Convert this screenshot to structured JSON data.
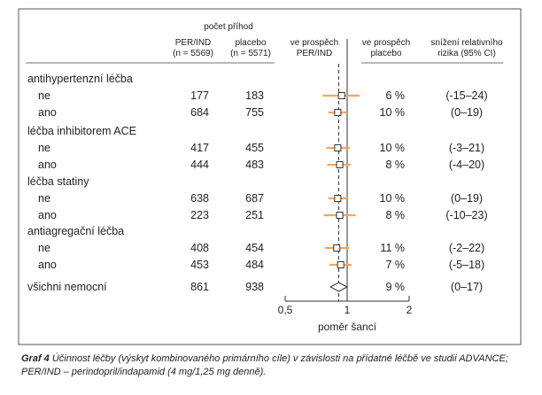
{
  "header": {
    "events_title": "počet příhod",
    "col_perind": "PER/IND",
    "col_perind_n": "(n = 5569)",
    "col_placebo": "placebo",
    "col_placebo_n": "(n = 5571)",
    "favours_perind_1": "ve prospěch",
    "favours_perind_2": "PER/IND",
    "favours_placebo_1": "ve prospěch",
    "favours_placebo_2": "placebo",
    "rrr_1": "snížení relativního",
    "rrr_2": "rizika (95% CI)"
  },
  "groups": [
    {
      "label": "antihypertenzní léčba"
    },
    {
      "label": "léčba inhibitorem ACE"
    },
    {
      "label": "léčba statiny"
    },
    {
      "label": "antiagregační léčba"
    }
  ],
  "rows": [
    {
      "label": "ne",
      "perind": "177",
      "placebo": "183",
      "rrr": "6 %",
      "ci": "(-15–24)"
    },
    {
      "label": "ano",
      "perind": "684",
      "placebo": "755",
      "rrr": "10 %",
      "ci": "(0–19)"
    },
    {
      "label": "ne",
      "perind": "417",
      "placebo": "455",
      "rrr": "10 %",
      "ci": "(-3–21)"
    },
    {
      "label": "ano",
      "perind": "444",
      "placebo": "483",
      "rrr": "8 %",
      "ci": "(-4–20)"
    },
    {
      "label": "ne",
      "perind": "638",
      "placebo": "687",
      "rrr": "10 %",
      "ci": "(0–19)"
    },
    {
      "label": "ano",
      "perind": "223",
      "placebo": "251",
      "rrr": "8 %",
      "ci": "(-10–23)"
    },
    {
      "label": "ne",
      "perind": "408",
      "placebo": "454",
      "rrr": "11 %",
      "ci": "(-2–22)"
    },
    {
      "label": "ano",
      "perind": "453",
      "placebo": "484",
      "rrr": "7 %",
      "ci": "(-5–18)"
    }
  ],
  "overall": {
    "label": "všichni nemocní",
    "perind": "861",
    "placebo": "938",
    "rrr": "9 %",
    "ci": "(0–17)"
  },
  "caption": {
    "prefix": "Graf 4",
    "text": "Účinnost léčby (výskyt kombinovaného primárního cíle) v závislosti na přídatné léčbě ve studii ADVANCE; PER/IND – perindopril/indapamid (4 mg/1,25 mg denně)."
  },
  "colors": {
    "ci_line": "#f2a75b",
    "box_border": "#333333",
    "frame": "#555555"
  },
  "chart_data": {
    "type": "forest",
    "xlabel": "poměr šancí",
    "xscale": "log",
    "xlim": [
      0.5,
      2
    ],
    "xticks": [
      0.5,
      1,
      2
    ],
    "xtick_labels": [
      "0,5",
      "1",
      "2"
    ],
    "reference_line": 1,
    "overall_estimate_line": 0.91,
    "rows": [
      {
        "group": "antihypertenzní léčba",
        "subgroup": "ne",
        "or": 0.94,
        "lo": 0.76,
        "hi": 1.15
      },
      {
        "group": "antihypertenzní léčba",
        "subgroup": "ano",
        "or": 0.9,
        "lo": 0.81,
        "hi": 1.0
      },
      {
        "group": "léčba inhibitorem ACE",
        "subgroup": "ne",
        "or": 0.9,
        "lo": 0.79,
        "hi": 1.03
      },
      {
        "group": "léčba inhibitorem ACE",
        "subgroup": "ano",
        "or": 0.92,
        "lo": 0.8,
        "hi": 1.04
      },
      {
        "group": "léčba statiny",
        "subgroup": "ne",
        "or": 0.9,
        "lo": 0.81,
        "hi": 1.0
      },
      {
        "group": "léčba statiny",
        "subgroup": "ano",
        "or": 0.92,
        "lo": 0.77,
        "hi": 1.1
      },
      {
        "group": "antiagregační léčba",
        "subgroup": "ne",
        "or": 0.89,
        "lo": 0.78,
        "hi": 1.02
      },
      {
        "group": "antiagregační léčba",
        "subgroup": "ano",
        "or": 0.93,
        "lo": 0.82,
        "hi": 1.05
      }
    ],
    "overall": {
      "label": "všichni nemocní",
      "or": 0.91,
      "lo": 0.83,
      "hi": 1.0
    }
  }
}
